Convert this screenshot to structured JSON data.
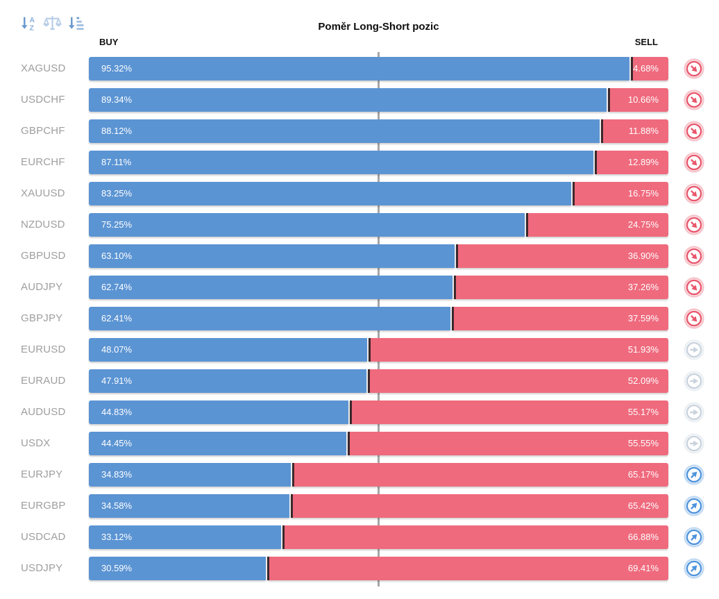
{
  "title": "Poměr Long-Short pozic",
  "columns": {
    "buy": "BUY",
    "sell": "SELL"
  },
  "toolbar": {
    "icons": [
      {
        "name": "sort-alphabetical-icon"
      },
      {
        "name": "balance-scale-icon"
      },
      {
        "name": "sort-amount-icon"
      }
    ]
  },
  "colors": {
    "buy_bar": "#5b94d3",
    "sell_bar": "#ef6a7d",
    "bar_divider": "#3a282c",
    "pair_label": "#9e9e9e",
    "center_line": "#a6a6a6",
    "signal_sell": "#e8566b",
    "signal_neutral": "#c9d3de",
    "signal_buy": "#4f94dc"
  },
  "rows": [
    {
      "symbol": "XAGUSD",
      "buy": 95.32,
      "sell": 4.68,
      "signal": "sell"
    },
    {
      "symbol": "USDCHF",
      "buy": 89.34,
      "sell": 10.66,
      "signal": "sell"
    },
    {
      "symbol": "GBPCHF",
      "buy": 88.12,
      "sell": 11.88,
      "signal": "sell"
    },
    {
      "symbol": "EURCHF",
      "buy": 87.11,
      "sell": 12.89,
      "signal": "sell"
    },
    {
      "symbol": "XAUUSD",
      "buy": 83.25,
      "sell": 16.75,
      "signal": "sell"
    },
    {
      "symbol": "NZDUSD",
      "buy": 75.25,
      "sell": 24.75,
      "signal": "sell"
    },
    {
      "symbol": "GBPUSD",
      "buy": 63.1,
      "sell": 36.9,
      "signal": "sell"
    },
    {
      "symbol": "AUDJPY",
      "buy": 62.74,
      "sell": 37.26,
      "signal": "sell"
    },
    {
      "symbol": "GBPJPY",
      "buy": 62.41,
      "sell": 37.59,
      "signal": "sell"
    },
    {
      "symbol": "EURUSD",
      "buy": 48.07,
      "sell": 51.93,
      "signal": "neutral"
    },
    {
      "symbol": "EURAUD",
      "buy": 47.91,
      "sell": 52.09,
      "signal": "neutral"
    },
    {
      "symbol": "AUDUSD",
      "buy": 44.83,
      "sell": 55.17,
      "signal": "neutral"
    },
    {
      "symbol": "USDX",
      "buy": 44.45,
      "sell": 55.55,
      "signal": "neutral"
    },
    {
      "symbol": "EURJPY",
      "buy": 34.83,
      "sell": 65.17,
      "signal": "buy"
    },
    {
      "symbol": "EURGBP",
      "buy": 34.58,
      "sell": 65.42,
      "signal": "buy"
    },
    {
      "symbol": "USDCAD",
      "buy": 33.12,
      "sell": 66.88,
      "signal": "buy"
    },
    {
      "symbol": "USDJPY",
      "buy": 30.59,
      "sell": 69.41,
      "signal": "buy"
    }
  ],
  "chart_data": {
    "type": "bar",
    "orientation": "horizontal-stacked",
    "title": "Poměr Long-Short pozic",
    "categories": [
      "XAGUSD",
      "USDCHF",
      "GBPCHF",
      "EURCHF",
      "XAUUSD",
      "NZDUSD",
      "GBPUSD",
      "AUDJPY",
      "GBPJPY",
      "EURUSD",
      "EURAUD",
      "AUDUSD",
      "USDX",
      "EURJPY",
      "EURGBP",
      "USDCAD",
      "USDJPY"
    ],
    "series": [
      {
        "name": "BUY",
        "color": "#5b94d3",
        "values": [
          95.32,
          89.34,
          88.12,
          87.11,
          83.25,
          75.25,
          63.1,
          62.74,
          62.41,
          48.07,
          47.91,
          44.83,
          44.45,
          34.83,
          34.58,
          33.12,
          30.59
        ]
      },
      {
        "name": "SELL",
        "color": "#ef6a7d",
        "values": [
          4.68,
          10.66,
          11.88,
          12.89,
          16.75,
          24.75,
          36.9,
          37.26,
          37.59,
          51.93,
          52.09,
          55.17,
          55.55,
          65.17,
          65.42,
          66.88,
          69.41
        ]
      }
    ],
    "xlim": [
      0,
      100
    ],
    "reference_line_at": 50,
    "value_label_format": "0.00%",
    "grid": false,
    "legend_position": "top (BUY left, SELL right)"
  }
}
